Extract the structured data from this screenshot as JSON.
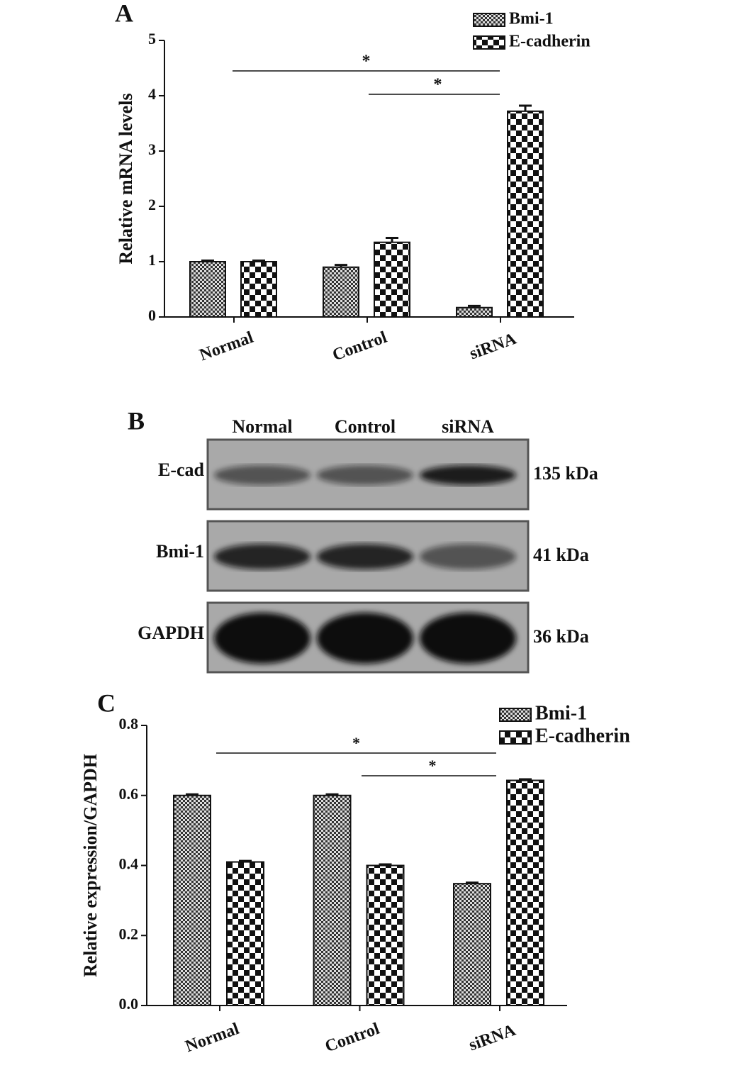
{
  "chart_data": [
    {
      "type": "bar",
      "title": "A",
      "y_label": "Relative mRNA levels",
      "categories": [
        "Normal",
        "Control",
        "siRNA"
      ],
      "series": [
        {
          "name": "Bmi-1",
          "color": "#111111",
          "values": [
            1.0,
            0.9,
            0.17
          ],
          "errors": [
            0.02,
            0.04,
            0.03
          ]
        },
        {
          "name": "E-cadherin",
          "color": "#111111",
          "values": [
            1.0,
            1.35,
            3.72
          ],
          "errors": [
            0.02,
            0.08,
            0.1
          ]
        }
      ],
      "ylim": [
        0,
        5
      ],
      "yticks": [
        0,
        1,
        2,
        3,
        4,
        5
      ],
      "annotations": [
        "*",
        "*"
      ]
    },
    {
      "type": "bar",
      "title": "C",
      "y_label": "Relative expression/GAPDH",
      "categories": [
        "Normal",
        "Control",
        "siRNA"
      ],
      "series": [
        {
          "name": "Bmi-1",
          "color": "#111111",
          "values": [
            0.6,
            0.6,
            0.348
          ],
          "errors": [
            0.003,
            0.003,
            0.003
          ]
        },
        {
          "name": "E-cadherin",
          "color": "#111111",
          "values": [
            0.41,
            0.4,
            0.643
          ],
          "errors": [
            0.003,
            0.003,
            0.003
          ]
        }
      ],
      "ylim": [
        0,
        0.8
      ],
      "yticks": [
        {
          "value": 0,
          "label": "0.0"
        },
        0.2,
        0.4,
        0.6,
        0.8
      ],
      "annotations": [
        "*",
        "*"
      ]
    }
  ],
  "blot": {
    "title": "B",
    "lanes": [
      "Normal",
      "Control",
      "siRNA"
    ],
    "rows": [
      {
        "label": "E-cad",
        "size": "135 kDa"
      },
      {
        "label": "Bmi-1",
        "size": "41 kDa"
      },
      {
        "label": "GAPDH",
        "size": "36 kDa"
      }
    ]
  }
}
